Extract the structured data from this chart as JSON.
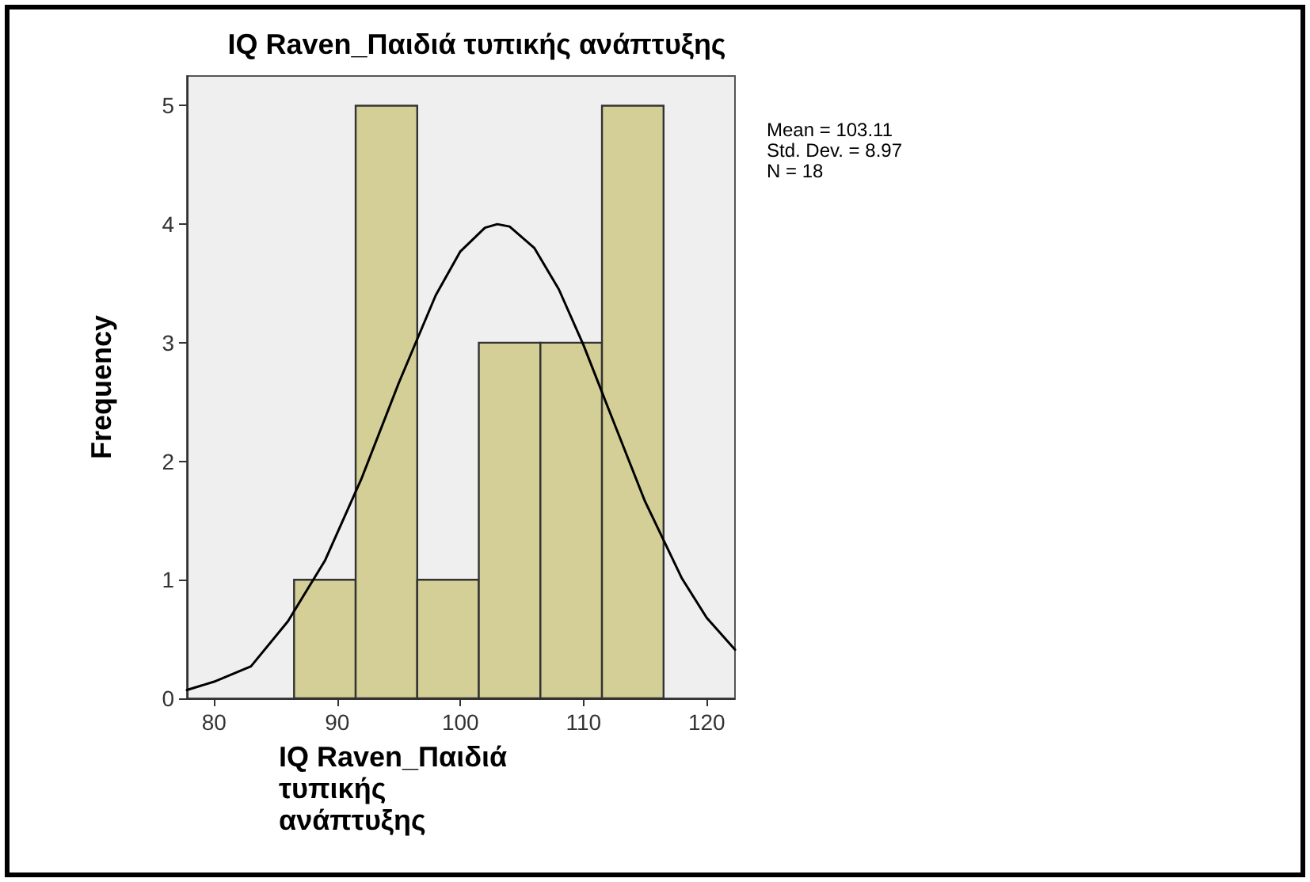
{
  "chart_data": {
    "type": "histogram",
    "title": "IQ Raven_Παιδιά τυπικής ανάπτυξης",
    "xlabel": "IQ Raven_Παιδιά τυπικής ανάπτυξης",
    "ylabel": "Frequency",
    "bins": [
      86.5,
      91.5,
      96.5,
      101.5,
      106.5,
      111.5,
      116.5
    ],
    "values": [
      1,
      5,
      1,
      3,
      3,
      5
    ],
    "color": "#d3cf97",
    "series": [
      {
        "type": "line",
        "color": "#000000",
        "x": [
          77.8,
          80,
          83,
          86,
          89,
          92,
          95,
          98,
          100,
          102,
          103,
          104,
          106,
          108,
          110,
          112,
          115,
          118,
          120,
          122.3
        ],
        "values": [
          0.07,
          0.14,
          0.27,
          0.65,
          1.16,
          1.86,
          2.66,
          3.4,
          3.77,
          3.97,
          4.0,
          3.98,
          3.8,
          3.45,
          2.98,
          2.45,
          1.66,
          1.01,
          0.68,
          0.41
        ]
      }
    ],
    "annotations": [
      "Mean = 103.11",
      "Std. Dev. = 8.97",
      "N = 18"
    ],
    "xlim": [
      77.8,
      122.3
    ],
    "xticks": [
      80,
      90,
      100,
      110,
      120
    ],
    "ylim": [
      0,
      5.25
    ],
    "yticks": [
      0,
      1,
      2,
      3,
      4,
      5
    ],
    "grid": false,
    "marker": "none",
    "line_style": "solid"
  }
}
